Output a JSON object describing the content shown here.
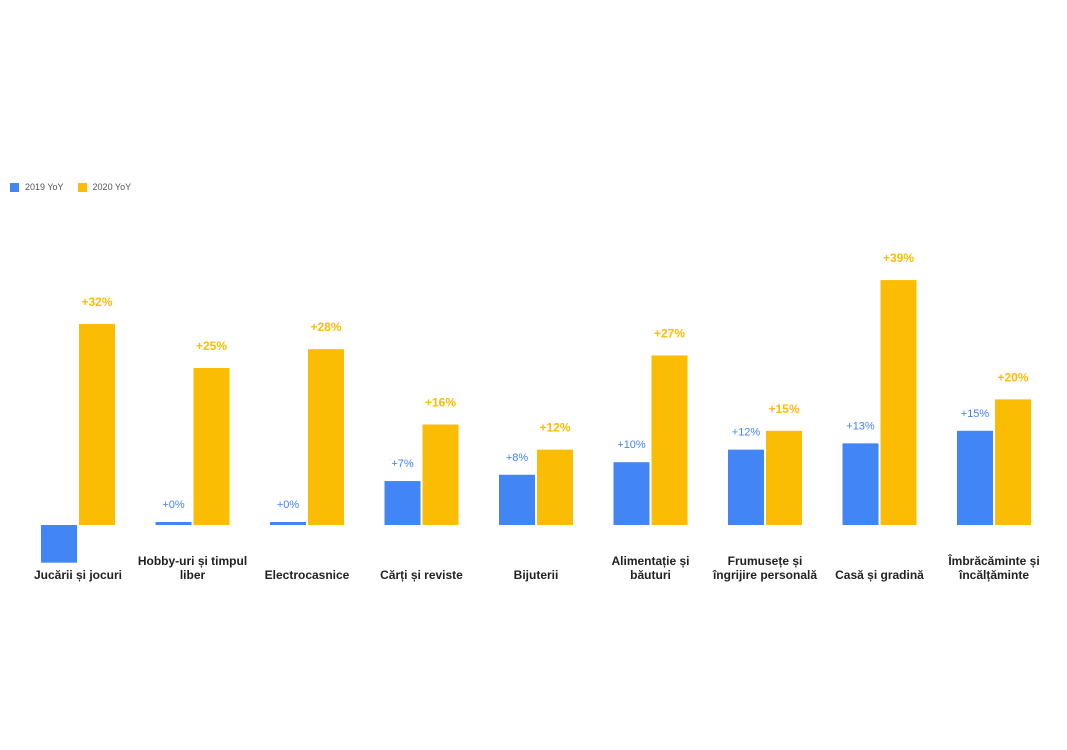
{
  "chart_data": {
    "type": "bar",
    "categories": [
      "Jucării și jocuri",
      "Hobby-uri și timpul liber",
      "Electrocasnice",
      "Cărți și reviste",
      "Bijuterii",
      "Alimentație și băuturi",
      "Frumusețe și îngrijire personală",
      "Casă și gradină",
      "Îmbrăcăminte și încălțăminte"
    ],
    "series": [
      {
        "name": "2019 YoY",
        "color": "#4285F4",
        "values": [
          -6,
          0,
          0,
          7,
          8,
          10,
          12,
          13,
          15
        ],
        "labels": [
          "",
          "+0%",
          "+0%",
          "+7%",
          "+8%",
          "+10%",
          "+12%",
          "+13%",
          "+15%"
        ]
      },
      {
        "name": "2020 YoY",
        "color": "#FBBC04",
        "values": [
          32,
          25,
          28,
          16,
          12,
          27,
          15,
          39,
          20
        ],
        "labels": [
          "+32%",
          "+25%",
          "+28%",
          "+16%",
          "+12%",
          "+27%",
          "+15%",
          "+39%",
          "+20%"
        ]
      }
    ],
    "legend_position": "top-left",
    "grid": false
  }
}
